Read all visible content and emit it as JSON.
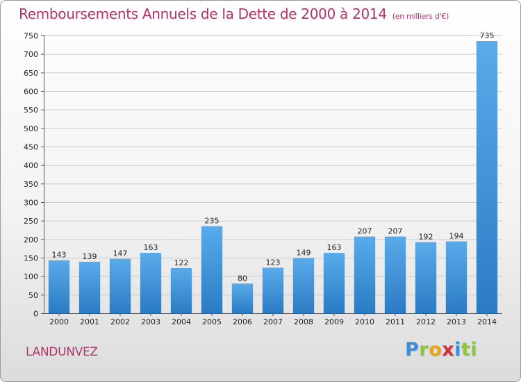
{
  "header": {
    "title": "Remboursements Annuels de la Dette de 2000 à 2014",
    "unit": "(en milliers d'€)"
  },
  "footer": {
    "commune": "LANDUNVEZ",
    "logo": [
      "P",
      "r",
      "o",
      "x",
      "i",
      "ti"
    ]
  },
  "colors": {
    "bar_top": "#5aabea",
    "bar_bottom": "#2b7bc4",
    "title": "#b0336a",
    "grid": "#cccccc"
  },
  "chart_data": {
    "type": "bar",
    "categories": [
      "2000",
      "2001",
      "2002",
      "2003",
      "2004",
      "2005",
      "2006",
      "2007",
      "2008",
      "2009",
      "2010",
      "2011",
      "2012",
      "2013",
      "2014"
    ],
    "values": [
      143,
      139,
      147,
      163,
      122,
      235,
      80,
      123,
      149,
      163,
      207,
      207,
      192,
      194,
      735
    ],
    "title": "Remboursements Annuels de la Dette de 2000 à 2014",
    "xlabel": "",
    "ylabel": "",
    "ylim": [
      0,
      750
    ],
    "yticks": [
      0,
      50,
      100,
      150,
      200,
      250,
      300,
      350,
      400,
      450,
      500,
      550,
      600,
      650,
      700,
      750
    ],
    "grid": true,
    "legend": "none",
    "data_labels": true
  }
}
